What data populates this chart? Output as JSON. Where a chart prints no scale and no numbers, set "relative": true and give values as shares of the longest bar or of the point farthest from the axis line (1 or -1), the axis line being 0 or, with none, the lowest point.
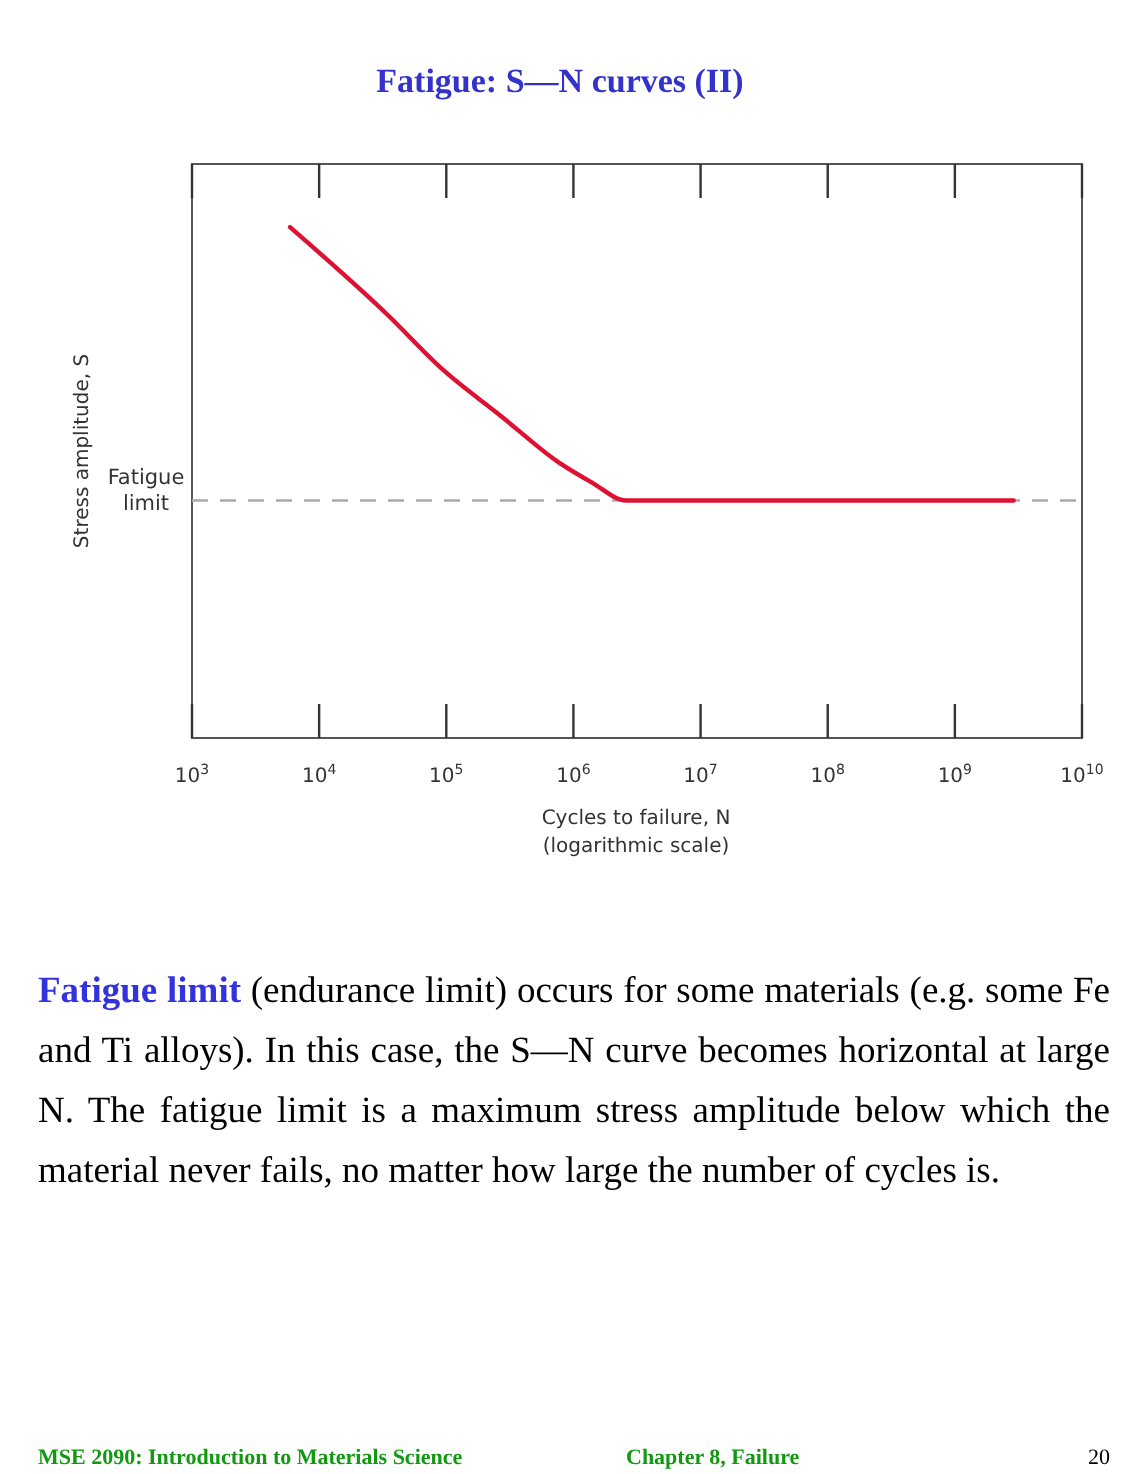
{
  "chart_data": {
    "type": "line",
    "title": "Fatigue: S—N curves (II)",
    "xlabel": "Cycles to failure, N\n(logarithmic scale)",
    "ylabel": "Stress amplitude, S",
    "relative": true,
    "log": "x",
    "x": [
      5900,
      34000,
      95000,
      270000,
      760000,
      1400000,
      2600000,
      2900000000
    ],
    "series": [
      {
        "color": "#dd1133",
        "values": [
          1,
          0.83,
          0.72,
          0.63,
          0.54,
          0.5,
          0.465,
          0.465
        ]
      }
    ],
    "xlim": [
      1000,
      10000000000
    ],
    "xticks": [
      {
        "value": 1000,
        "label": "10$^{3}$"
      },
      {
        "value": 10000,
        "label": "10$^{4}$"
      },
      {
        "value": 100000,
        "label": "10$^{5}$"
      },
      {
        "value": 1000000,
        "label": "10$^{6}$"
      },
      {
        "value": 10000000,
        "label": "10$^{7}$"
      },
      {
        "value": 100000000,
        "label": "10$^{8}$"
      },
      {
        "value": 1000000000,
        "label": "10$^{9}$"
      },
      {
        "value": 10000000000,
        "label": "10$^{10}$"
      }
    ],
    "ref_lines": [
      {
        "axis": "y",
        "value": 0.465,
        "label": "Fatigue\nlimit",
        "color": "#aaaaaa",
        "line_style": "dashed"
      }
    ],
    "marker": "none",
    "line_style": "solid",
    "annotations": [
      "Fatigue limit",
      " (endurance limit) occurs for some materials (e.g. some Fe and Ti alloys). In this case, the S—N curve becomes horizontal at large N.  The fatigue limit is a maximum stress amplitude below which the material never fails, no matter how large the number of cycles is.",
      "MSE 2090: Introduction to Materials Science",
      "Chapter 8, Failure",
      "20"
    ]
  }
}
